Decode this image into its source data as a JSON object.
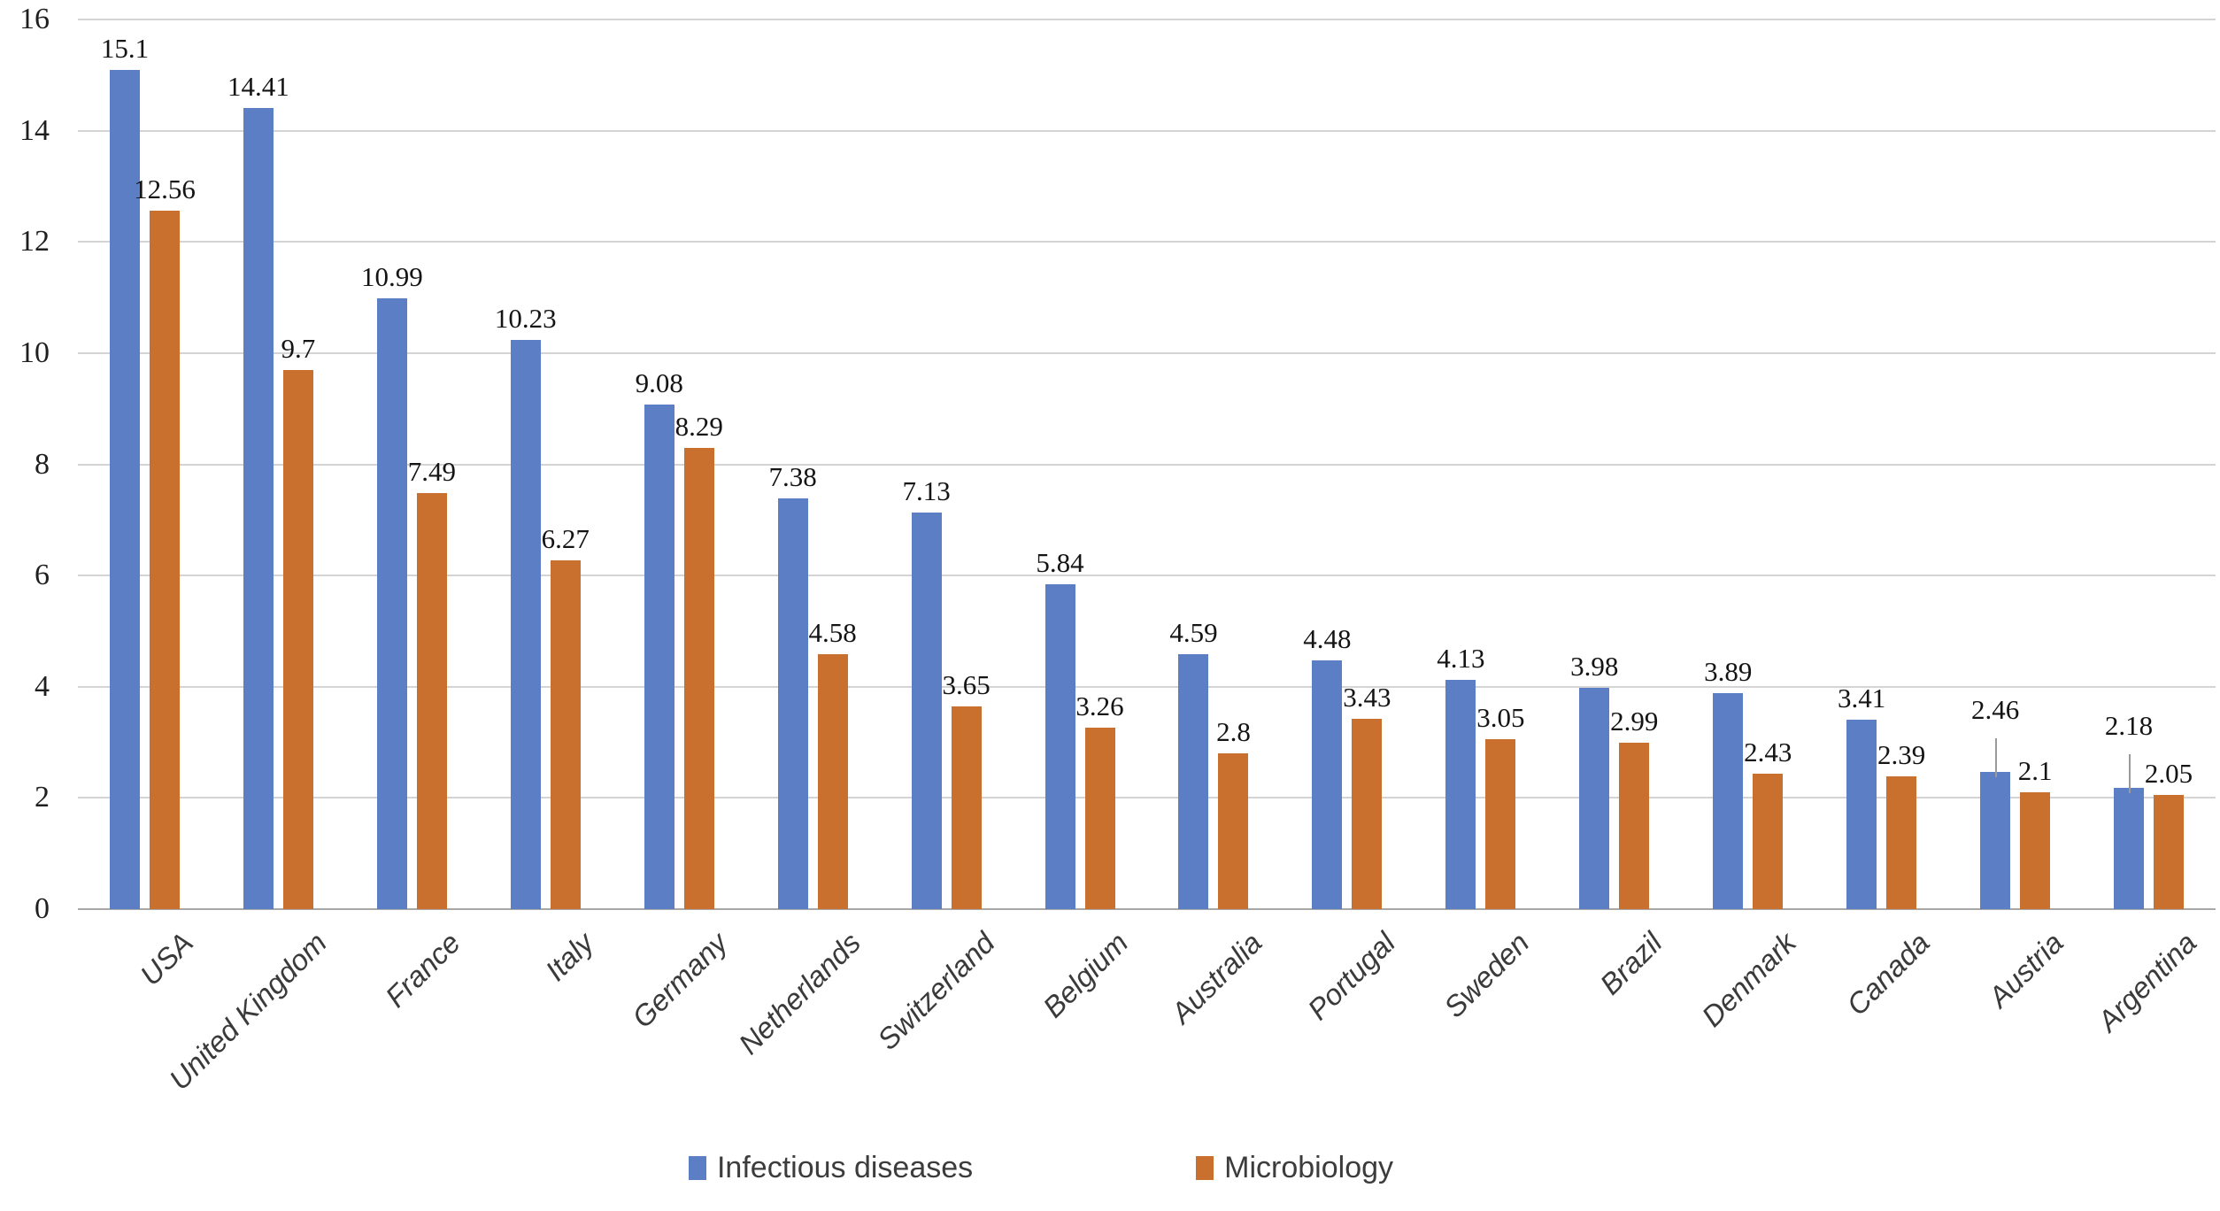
{
  "chart_data": {
    "type": "bar",
    "title": "",
    "xlabel": "",
    "ylabel": "",
    "categories": [
      "USA",
      "United Kingdom",
      "France",
      "Italy",
      "Germany",
      "Netherlands",
      "Switzerland",
      "Belgium",
      "Australia",
      "Portugal",
      "Sweden",
      "Brazil",
      "Denmark",
      "Canada",
      "Austria",
      "Argentina"
    ],
    "series": [
      {
        "name": "Infectious diseases",
        "color": "#5C7EC5",
        "values": [
          15.1,
          14.41,
          10.99,
          10.23,
          9.08,
          7.38,
          7.13,
          5.84,
          4.59,
          4.48,
          4.13,
          3.98,
          3.89,
          3.41,
          2.46,
          2.18
        ],
        "label_leader_lines_at": [
          "Austria",
          "Argentina"
        ]
      },
      {
        "name": "Microbiology",
        "color": "#C9702E",
        "values": [
          12.56,
          9.7,
          7.49,
          6.27,
          8.29,
          4.58,
          3.65,
          3.26,
          2.8,
          3.43,
          3.05,
          2.99,
          2.43,
          2.39,
          2.1,
          2.05
        ],
        "label_leader_lines_at": []
      }
    ],
    "ylim": [
      0,
      16
    ],
    "yticks": [
      0,
      2,
      4,
      6,
      8,
      10,
      12,
      14,
      16
    ],
    "grid": true,
    "gridline_color": "#D4D4D4",
    "axis_line_color": "#A8A8A8",
    "data_labels": true,
    "legend_position": "bottom"
  }
}
